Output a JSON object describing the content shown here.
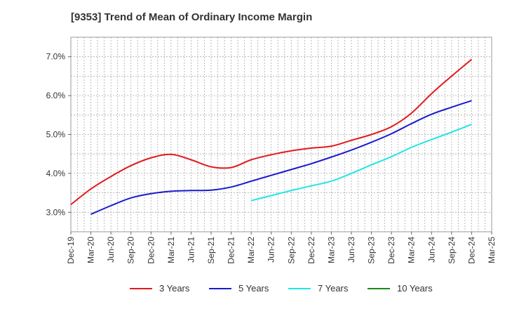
{
  "title": "[9353]  Trend of Mean of Ordinary Income Margin",
  "chart_data": {
    "type": "line",
    "title": "[9353]  Trend of Mean of Ordinary Income Margin",
    "x": [
      "Dec-19",
      "Mar-20",
      "Jun-20",
      "Sep-20",
      "Dec-20",
      "Mar-21",
      "Jun-21",
      "Sep-21",
      "Dec-21",
      "Mar-22",
      "Jun-22",
      "Sep-22",
      "Dec-22",
      "Mar-23",
      "Jun-23",
      "Sep-23",
      "Dec-23",
      "Mar-24",
      "Jun-24",
      "Sep-24",
      "Dec-24",
      "Mar-25"
    ],
    "y_ticks": [
      "3.0%",
      "4.0%",
      "5.0%",
      "6.0%",
      "7.0%"
    ],
    "y_tick_values": [
      3.0,
      4.0,
      5.0,
      6.0,
      7.0
    ],
    "ylim": [
      2.5,
      7.5
    ],
    "grid": true,
    "legend_position": "bottom",
    "series": [
      {
        "name": "3 Years",
        "color": "#e31a1c",
        "values": [
          3.2,
          3.6,
          3.92,
          4.2,
          4.4,
          4.49,
          4.35,
          4.17,
          4.15,
          4.35,
          4.48,
          4.58,
          4.65,
          4.7,
          4.85,
          5.0,
          5.2,
          5.55,
          6.05,
          6.5,
          6.93,
          null
        ]
      },
      {
        "name": "5 Years",
        "color": "#1a1acd",
        "values": [
          null,
          2.95,
          3.17,
          3.37,
          3.48,
          3.54,
          3.56,
          3.57,
          3.65,
          3.8,
          3.95,
          4.1,
          4.25,
          4.42,
          4.6,
          4.8,
          5.02,
          5.28,
          5.52,
          5.7,
          5.87,
          null
        ]
      },
      {
        "name": "7 Years",
        "color": "#22e5e5",
        "values": [
          null,
          null,
          null,
          null,
          null,
          null,
          null,
          null,
          null,
          3.3,
          3.43,
          3.56,
          3.68,
          3.8,
          4.0,
          4.22,
          4.43,
          4.67,
          4.87,
          5.06,
          5.26,
          null
        ]
      },
      {
        "name": "10 Years",
        "color": "#1a8a1a",
        "values": [
          null,
          null,
          null,
          null,
          null,
          null,
          null,
          null,
          null,
          null,
          null,
          null,
          null,
          null,
          null,
          null,
          null,
          null,
          null,
          null,
          null,
          null
        ]
      }
    ]
  }
}
